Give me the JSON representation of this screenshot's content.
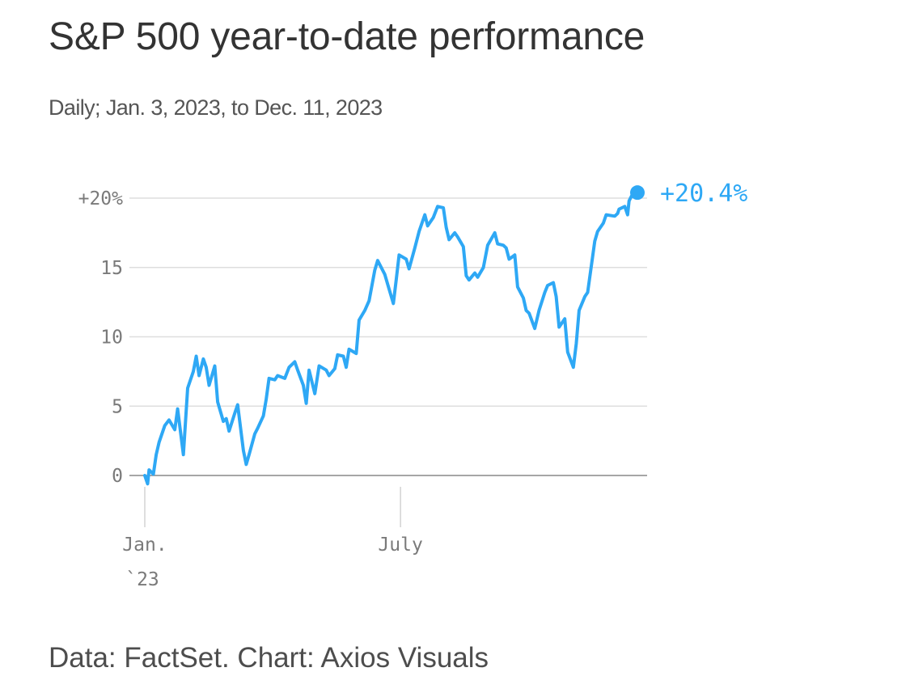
{
  "title": "S&P 500 year-to-date performance",
  "subtitle": "Daily; Jan. 3, 2023, to Dec. 11, 2023",
  "footer": "Data: FactSet. Chart: Axios Visuals",
  "colors": {
    "line": "#2ea8f5",
    "grid": "#dedede",
    "axis": "#888888",
    "tick_text": "#7a7a7a"
  },
  "chart_data": {
    "type": "line",
    "title": "S&P 500 year-to-date performance",
    "subtitle": "Daily; Jan. 3, 2023, to Dec. 11, 2023",
    "xlabel": "",
    "ylabel": "",
    "x_range": [
      "2023-01-03",
      "2023-12-11"
    ],
    "ylim": [
      -1,
      20.5
    ],
    "yticks": [
      {
        "value": 0,
        "label": "0"
      },
      {
        "value": 5,
        "label": "5"
      },
      {
        "value": 10,
        "label": "10"
      },
      {
        "value": 15,
        "label": "15"
      },
      {
        "value": 20,
        "label": "+20%"
      }
    ],
    "xticks": [
      {
        "date": "2023-01-03",
        "label": "Jan.",
        "sublabel": "`23"
      },
      {
        "date": "2023-07-01",
        "label": "July",
        "sublabel": ""
      }
    ],
    "grid": true,
    "end_label": "+20.4%",
    "series": [
      {
        "values": [
          [
            "2023-01-03",
            0.0
          ],
          [
            "2023-01-05",
            -0.6
          ],
          [
            "2023-01-06",
            0.4
          ],
          [
            "2023-01-09",
            0.1
          ],
          [
            "2023-01-11",
            1.5
          ],
          [
            "2023-01-13",
            2.4
          ],
          [
            "2023-01-17",
            3.6
          ],
          [
            "2023-01-20",
            4.0
          ],
          [
            "2023-01-24",
            3.3
          ],
          [
            "2023-01-26",
            4.8
          ],
          [
            "2023-01-30",
            1.5
          ],
          [
            "2023-02-02",
            6.3
          ],
          [
            "2023-02-06",
            7.5
          ],
          [
            "2023-02-08",
            8.6
          ],
          [
            "2023-02-10",
            7.2
          ],
          [
            "2023-02-13",
            8.4
          ],
          [
            "2023-02-15",
            7.8
          ],
          [
            "2023-02-17",
            6.5
          ],
          [
            "2023-02-21",
            7.9
          ],
          [
            "2023-02-23",
            5.3
          ],
          [
            "2023-02-27",
            3.9
          ],
          [
            "2023-03-01",
            4.1
          ],
          [
            "2023-03-03",
            3.2
          ],
          [
            "2023-03-07",
            4.5
          ],
          [
            "2023-03-09",
            5.1
          ],
          [
            "2023-03-13",
            1.8
          ],
          [
            "2023-03-15",
            0.8
          ],
          [
            "2023-03-17",
            1.5
          ],
          [
            "2023-03-21",
            3.0
          ],
          [
            "2023-03-23",
            3.4
          ],
          [
            "2023-03-27",
            4.3
          ],
          [
            "2023-03-29",
            5.5
          ],
          [
            "2023-03-31",
            7.0
          ],
          [
            "2023-04-04",
            6.9
          ],
          [
            "2023-04-06",
            7.2
          ],
          [
            "2023-04-11",
            7.0
          ],
          [
            "2023-04-14",
            7.8
          ],
          [
            "2023-04-18",
            8.2
          ],
          [
            "2023-04-20",
            7.6
          ],
          [
            "2023-04-24",
            6.5
          ],
          [
            "2023-04-26",
            5.2
          ],
          [
            "2023-04-28",
            7.6
          ],
          [
            "2023-05-02",
            5.9
          ],
          [
            "2023-05-05",
            7.9
          ],
          [
            "2023-05-10",
            7.6
          ],
          [
            "2023-05-12",
            7.2
          ],
          [
            "2023-05-16",
            7.7
          ],
          [
            "2023-05-18",
            8.7
          ],
          [
            "2023-05-22",
            8.6
          ],
          [
            "2023-05-24",
            7.8
          ],
          [
            "2023-05-26",
            9.1
          ],
          [
            "2023-05-31",
            8.8
          ],
          [
            "2023-06-02",
            11.2
          ],
          [
            "2023-06-06",
            11.9
          ],
          [
            "2023-06-09",
            12.6
          ],
          [
            "2023-06-13",
            14.8
          ],
          [
            "2023-06-15",
            15.5
          ],
          [
            "2023-06-20",
            14.5
          ],
          [
            "2023-06-22",
            13.8
          ],
          [
            "2023-06-26",
            12.4
          ],
          [
            "2023-06-28",
            14.1
          ],
          [
            "2023-06-30",
            15.9
          ],
          [
            "2023-07-05",
            15.6
          ],
          [
            "2023-07-07",
            14.9
          ],
          [
            "2023-07-11",
            16.4
          ],
          [
            "2023-07-14",
            17.6
          ],
          [
            "2023-07-18",
            18.8
          ],
          [
            "2023-07-20",
            18.0
          ],
          [
            "2023-07-24",
            18.6
          ],
          [
            "2023-07-27",
            19.4
          ],
          [
            "2023-07-31",
            19.3
          ],
          [
            "2023-08-02",
            17.9
          ],
          [
            "2023-08-04",
            17.0
          ],
          [
            "2023-08-08",
            17.5
          ],
          [
            "2023-08-10",
            17.2
          ],
          [
            "2023-08-14",
            16.5
          ],
          [
            "2023-08-16",
            14.4
          ],
          [
            "2023-08-18",
            14.1
          ],
          [
            "2023-08-22",
            14.6
          ],
          [
            "2023-08-24",
            14.3
          ],
          [
            "2023-08-28",
            15.0
          ],
          [
            "2023-08-31",
            16.6
          ],
          [
            "2023-09-05",
            17.5
          ],
          [
            "2023-09-07",
            16.7
          ],
          [
            "2023-09-11",
            16.6
          ],
          [
            "2023-09-13",
            16.4
          ],
          [
            "2023-09-15",
            15.6
          ],
          [
            "2023-09-19",
            15.9
          ],
          [
            "2023-09-21",
            13.6
          ],
          [
            "2023-09-25",
            12.8
          ],
          [
            "2023-09-27",
            11.9
          ],
          [
            "2023-09-29",
            11.7
          ],
          [
            "2023-10-03",
            10.6
          ],
          [
            "2023-10-06",
            11.9
          ],
          [
            "2023-10-10",
            13.2
          ],
          [
            "2023-10-12",
            13.7
          ],
          [
            "2023-10-16",
            13.9
          ],
          [
            "2023-10-18",
            12.9
          ],
          [
            "2023-10-20",
            10.7
          ],
          [
            "2023-10-24",
            11.3
          ],
          [
            "2023-10-26",
            8.9
          ],
          [
            "2023-10-30",
            7.8
          ],
          [
            "2023-11-01",
            9.5
          ],
          [
            "2023-11-03",
            11.9
          ],
          [
            "2023-11-07",
            12.9
          ],
          [
            "2023-11-09",
            13.2
          ],
          [
            "2023-11-14",
            16.9
          ],
          [
            "2023-11-16",
            17.6
          ],
          [
            "2023-11-20",
            18.2
          ],
          [
            "2023-11-22",
            18.8
          ],
          [
            "2023-11-28",
            18.7
          ],
          [
            "2023-11-30",
            18.9
          ],
          [
            "2023-12-01",
            19.2
          ],
          [
            "2023-12-05",
            19.4
          ],
          [
            "2023-12-07",
            18.8
          ],
          [
            "2023-12-08",
            19.8
          ],
          [
            "2023-12-11",
            20.4
          ]
        ]
      }
    ]
  }
}
